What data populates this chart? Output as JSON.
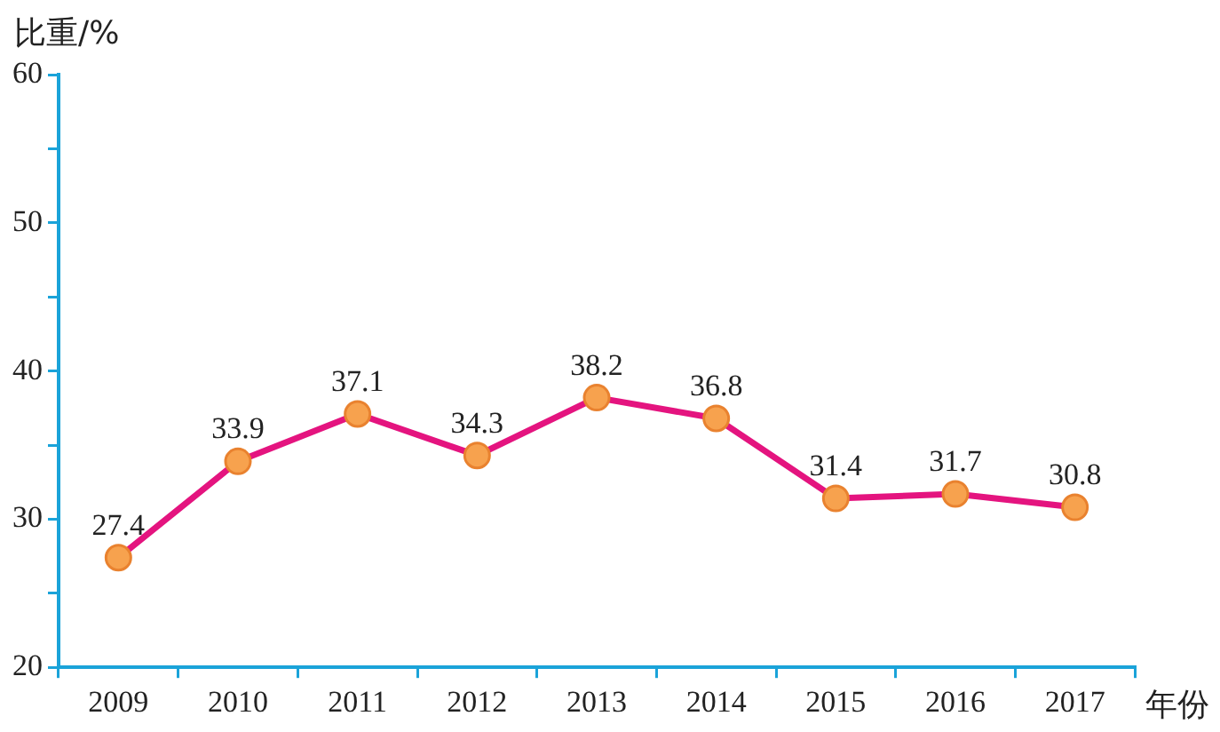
{
  "chart_data": {
    "type": "line",
    "xlabel": "年份",
    "ylabel": "比重/%",
    "categories": [
      "2009",
      "2010",
      "2011",
      "2012",
      "2013",
      "2014",
      "2015",
      "2016",
      "2017"
    ],
    "series": [
      {
        "color": "#e4147f",
        "values": [
          27.4,
          33.9,
          37.1,
          34.3,
          38.2,
          36.8,
          31.4,
          31.7,
          30.8
        ]
      }
    ],
    "ylim": [
      20,
      60
    ],
    "yticks": [
      20,
      {
        "value": 25,
        "label": null
      },
      30,
      {
        "value": 35,
        "label": null
      },
      40,
      {
        "value": 45,
        "label": null
      },
      50,
      {
        "value": 55,
        "label": null
      },
      60
    ],
    "data_labels": true,
    "marker": "circle",
    "line_style": "solid",
    "legend": false,
    "grid": false
  }
}
